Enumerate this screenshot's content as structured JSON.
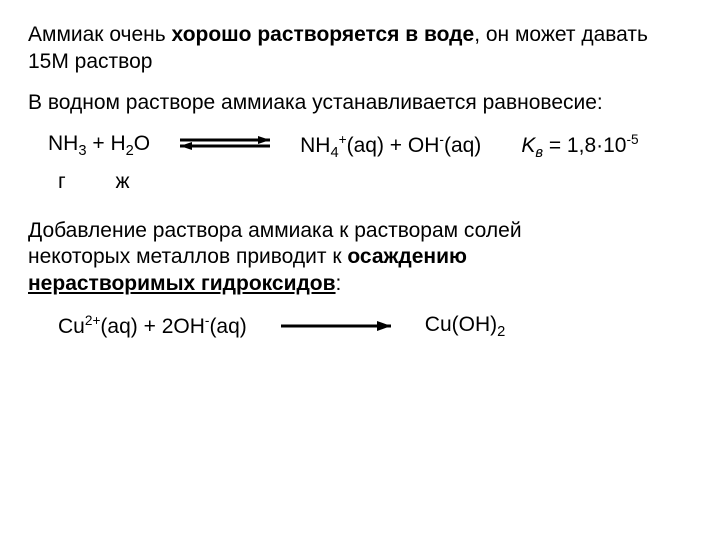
{
  "colors": {
    "text": "#000000",
    "background": "#ffffff",
    "arrow": "#000000"
  },
  "intro": {
    "pre": "Аммиак очень ",
    "hl": "хорошо растворяется в воде",
    "post": ", он может давать 15М раствор"
  },
  "equilibrium_text": "В водном растворе аммиака устанавливается равновесие:",
  "eq1": {
    "lhs_html": "NH<sub>3</sub> + H<sub>2</sub>O",
    "rhs_html": "NH<sub>4</sub><sup>+</sup>(aq) + OH<sup>-</sup>(aq)",
    "k_html": "<span class='kv'>K<sub>в</sub></span> = 1,8·10<sup>-5</sup>",
    "phase_g": "г",
    "phase_l": "ж"
  },
  "add_text": {
    "l1": "Добавление раствора аммиака к растворам солей",
    "l2_pre": "некоторых металлов приводит к ",
    "l2_hl": "осаждению",
    "l3_hl": "нерастворимых гидроксидов",
    "l3_post": ":"
  },
  "eq2": {
    "lhs_html": "Cu<sup>2+</sup>(aq) + 2OH<sup>-</sup>(aq)",
    "rhs_html": "Cu(OH)<sub>2</sub>"
  }
}
